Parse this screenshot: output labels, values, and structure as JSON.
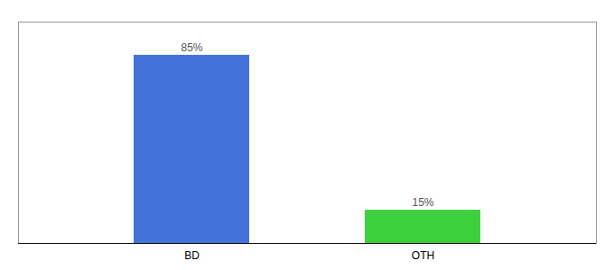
{
  "chart_data": {
    "type": "bar",
    "categories": [
      "BD",
      "OTH"
    ],
    "values": [
      85,
      15
    ],
    "value_labels": [
      "85%",
      "15%"
    ],
    "colors": [
      "#4472db",
      "#3ecf3e"
    ],
    "ylim": [
      0,
      100
    ],
    "data_labels": true,
    "tick_labels": "x"
  }
}
